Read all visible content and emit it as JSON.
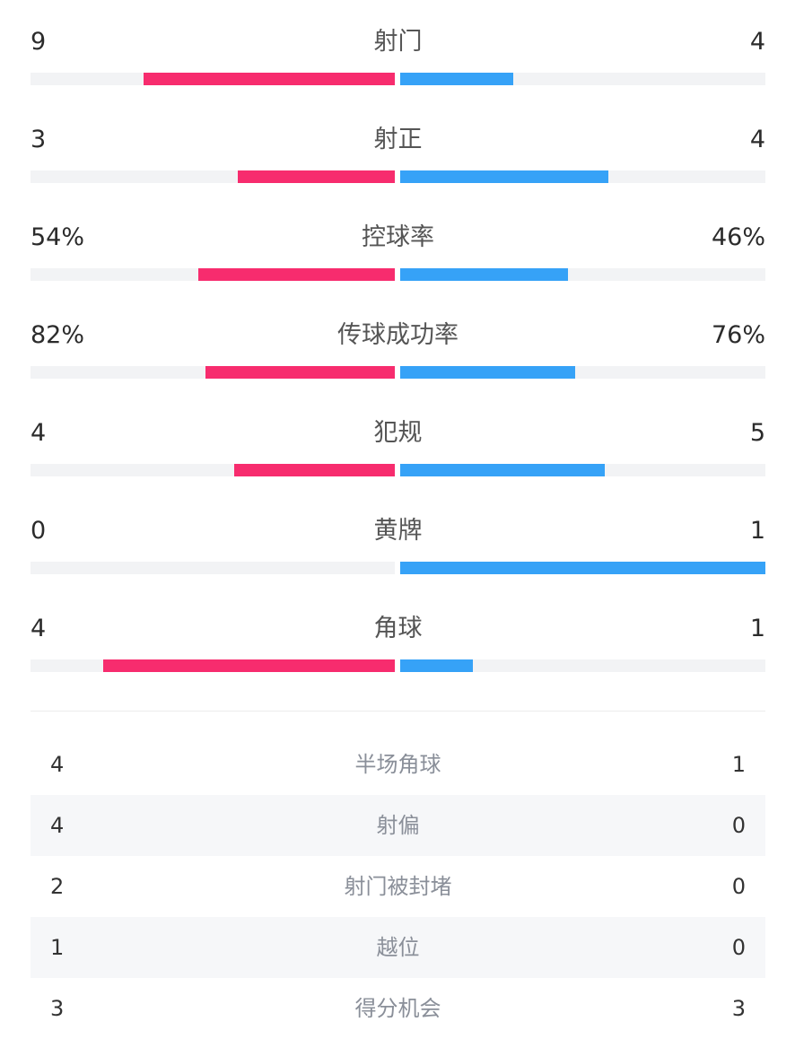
{
  "colors": {
    "home": "#f72c6e",
    "away": "#36a2f7",
    "track": "#f2f3f5"
  },
  "stats": [
    {
      "label": "射门",
      "home": "9",
      "away": "4",
      "home_frac": 0.69,
      "away_frac": 0.31
    },
    {
      "label": "射正",
      "home": "3",
      "away": "4",
      "home_frac": 0.43,
      "away_frac": 0.57
    },
    {
      "label": "控球率",
      "home": "54%",
      "away": "46%",
      "home_frac": 0.54,
      "away_frac": 0.46
    },
    {
      "label": "传球成功率",
      "home": "82%",
      "away": "76%",
      "home_frac": 0.52,
      "away_frac": 0.48
    },
    {
      "label": "犯规",
      "home": "4",
      "away": "5",
      "home_frac": 0.44,
      "away_frac": 0.56
    },
    {
      "label": "黄牌",
      "home": "0",
      "away": "1",
      "home_frac": 0.0,
      "away_frac": 1.0
    },
    {
      "label": "角球",
      "home": "4",
      "away": "1",
      "home_frac": 0.8,
      "away_frac": 0.2
    }
  ],
  "table": [
    {
      "label": "半场角球",
      "home": "4",
      "away": "1"
    },
    {
      "label": "射偏",
      "home": "4",
      "away": "0"
    },
    {
      "label": "射门被封堵",
      "home": "2",
      "away": "0"
    },
    {
      "label": "越位",
      "home": "1",
      "away": "0"
    },
    {
      "label": "得分机会",
      "home": "3",
      "away": "3"
    }
  ]
}
